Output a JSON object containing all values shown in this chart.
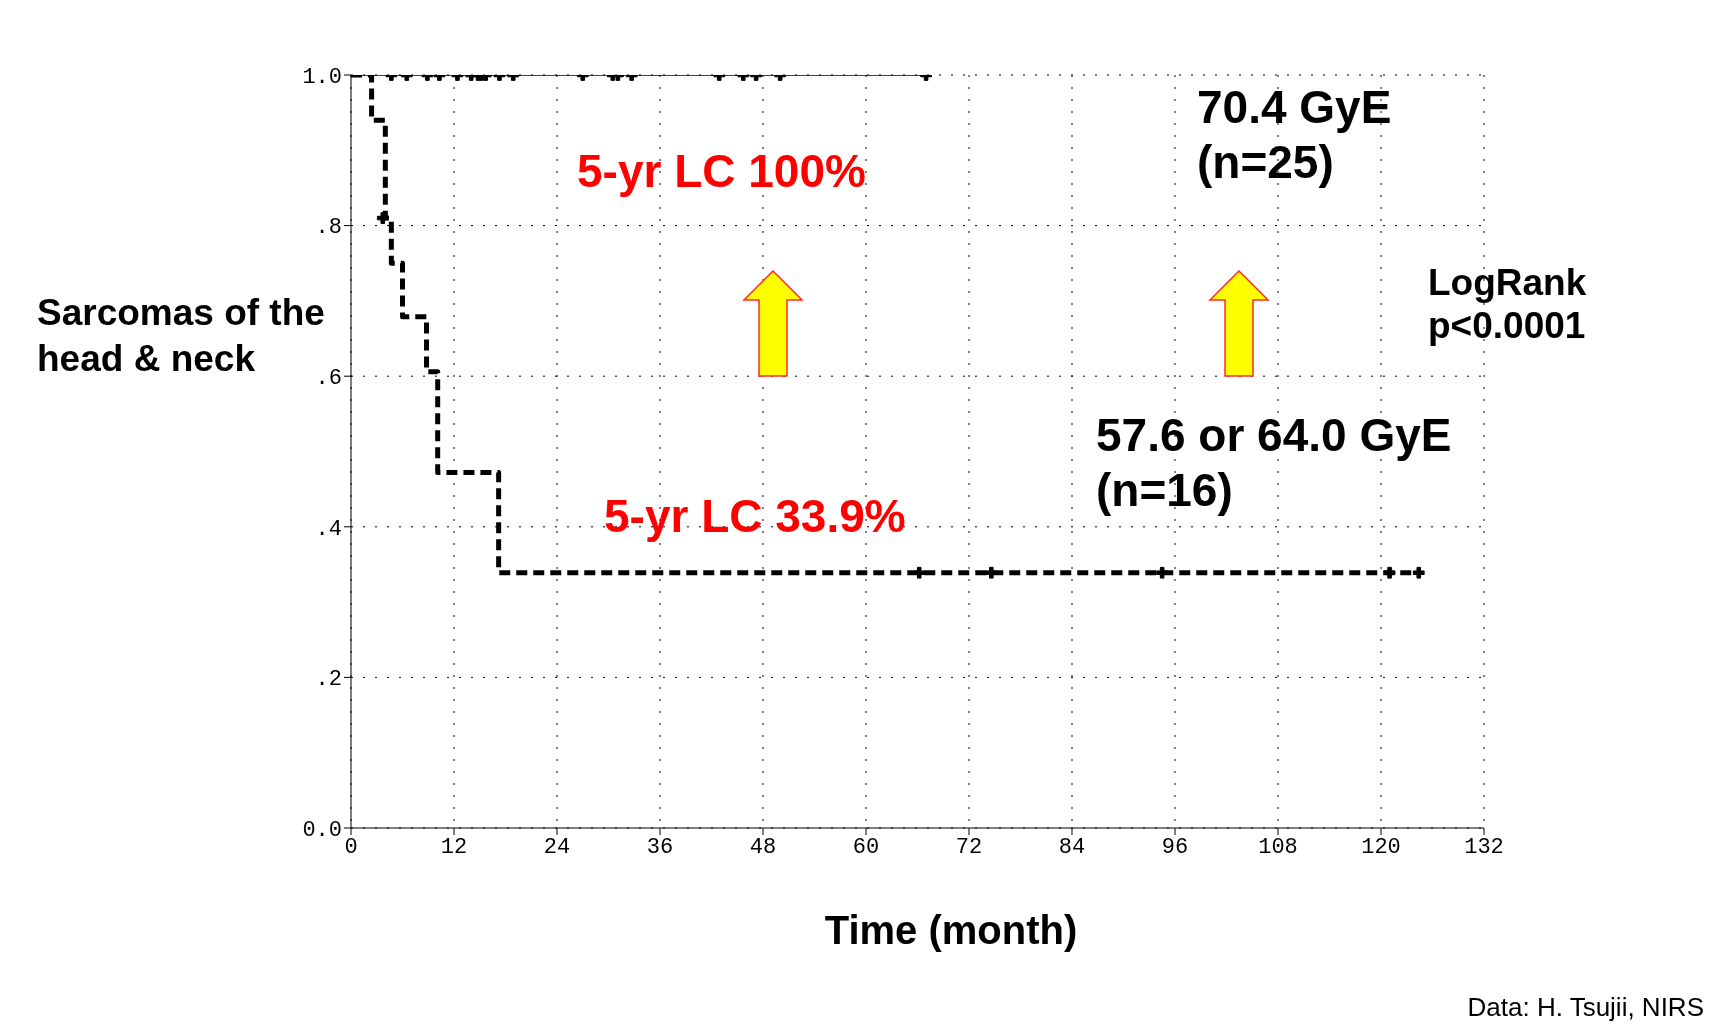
{
  "chart_data": {
    "type": "step",
    "xlabel": "Time (month)",
    "ylabel": "Sarcomas of the head & neck",
    "xlim": [
      0,
      132
    ],
    "xticks": [
      0,
      12,
      24,
      36,
      48,
      60,
      72,
      84,
      96,
      108,
      120,
      132
    ],
    "ylim": [
      0,
      1
    ],
    "yticks": [
      {
        "value": 0,
        "label": "0.0"
      },
      {
        "value": 0.2,
        "label": ".2"
      },
      {
        "value": 0.4,
        "label": ".4"
      },
      {
        "value": 0.6,
        "label": ".6"
      },
      {
        "value": 0.8,
        "label": ".8"
      },
      {
        "value": 1,
        "label": "1.0"
      }
    ],
    "grid": true,
    "series": [
      {
        "color": "#000000",
        "line_style": "solid",
        "x": [
          0,
          67
        ],
        "values": [
          1,
          1
        ]
      },
      {
        "type": "scatter",
        "color": "#000000",
        "marker": "cross",
        "x": [
          4.7,
          6.5,
          8.9,
          10.3,
          12.4,
          14.0,
          14.8,
          15.2,
          15.7,
          17.3,
          18.9,
          27.0,
          30.5,
          31.1,
          32.7,
          42.9,
          45.7,
          47.2,
          50.0,
          67.0
        ],
        "values": [
          1,
          1,
          1,
          1,
          1,
          1,
          1,
          1,
          1,
          1,
          1,
          1,
          1,
          1,
          1,
          1,
          1,
          1,
          1,
          1
        ]
      },
      {
        "name": "57.6 or 64.0 GyE (n=16)",
        "color": "#000000",
        "line_style": "dashed",
        "x": [
          0,
          2.4,
          4.0,
          4.7,
          6.0,
          8.8,
          10.1,
          17.2,
          124.4
        ],
        "values": [
          1,
          0.94,
          0.81,
          0.75,
          0.679,
          0.606,
          0.472,
          0.339,
          0.339
        ]
      },
      {
        "type": "scatter",
        "color": "#000000",
        "marker": "cross",
        "x": [
          3.7,
          66.2,
          74.6,
          94.5,
          121,
          124.4
        ],
        "values": [
          0.81,
          0.339,
          0.339,
          0.339,
          0.339,
          0.339
        ]
      }
    ],
    "annotations": [
      "5-yr LC 100%",
      "5-yr LC 33.9%",
      "LogRank p<0.0001",
      "Data: H. Tsujii, NIRS",
      "70.4 GyE (n=25)"
    ]
  }
}
